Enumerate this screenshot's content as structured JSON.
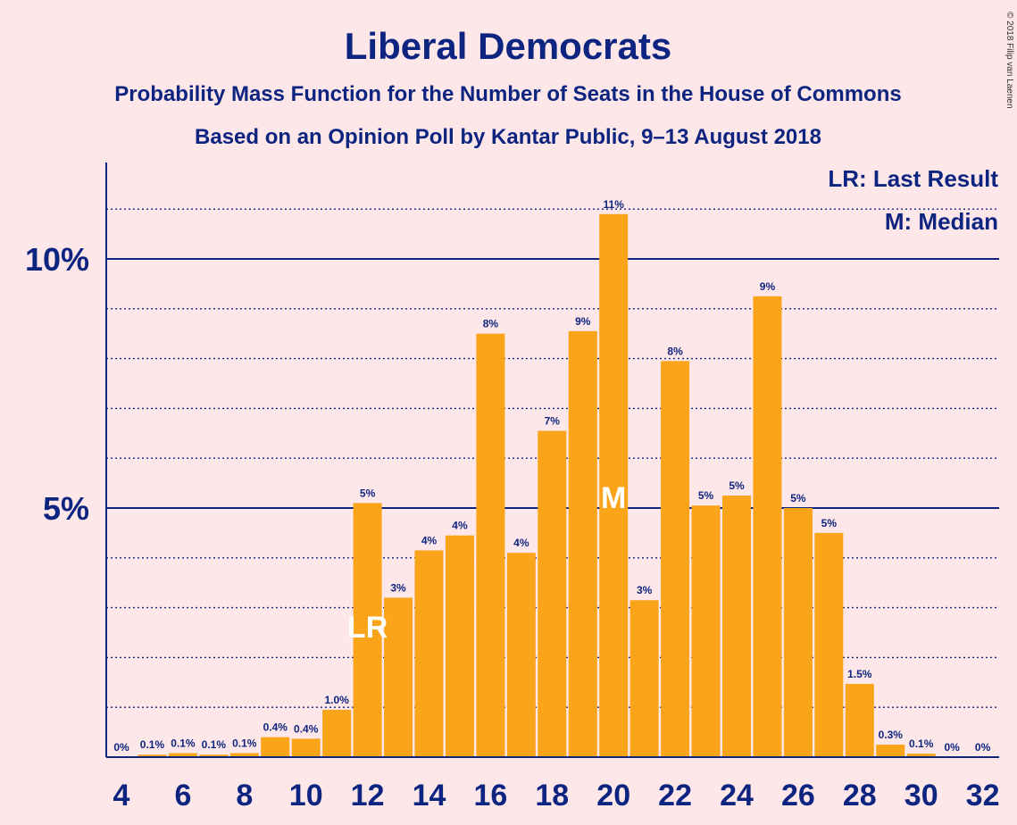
{
  "chart_data": {
    "type": "bar",
    "title": "Liberal Democrats",
    "subtitle": "Probability Mass Function for the Number of Seats in the House of Commons",
    "subtitle2": "Based on an Opinion Poll by Kantar Public, 9–13 August 2018",
    "copyright": "© 2018 Filip van Laenen",
    "legend": {
      "lr": "LR: Last Result",
      "m": "M: Median",
      "position": "top-right"
    },
    "xlabel": "",
    "ylabel": "",
    "ylim": [
      0,
      12
    ],
    "x_ticks": [
      "4",
      "6",
      "8",
      "10",
      "12",
      "14",
      "16",
      "18",
      "20",
      "22",
      "24",
      "26",
      "28",
      "30",
      "32"
    ],
    "y_ticks": [
      {
        "value": 5,
        "label": "5%"
      },
      {
        "value": 10,
        "label": "10%"
      }
    ],
    "grid": "dotted every 1%, solid at 5% and 10%",
    "colors": {
      "bar": "#faa41a",
      "axis": "#0d2480",
      "background": "#fde7e9"
    },
    "last_result_seat": 12,
    "median_seat": 20,
    "markers": {
      "lr": "LR",
      "m": "M"
    },
    "x": [
      4,
      5,
      6,
      7,
      8,
      9,
      10,
      11,
      12,
      13,
      14,
      15,
      16,
      17,
      18,
      19,
      20,
      21,
      22,
      23,
      24,
      25,
      26,
      27,
      28,
      29,
      30,
      31,
      32
    ],
    "values": [
      0,
      0.05,
      0.08,
      0.05,
      0.08,
      0.4,
      0.37,
      0.95,
      5.1,
      3.2,
      4.15,
      4.45,
      8.5,
      4.1,
      6.55,
      8.55,
      10.9,
      3.15,
      7.95,
      5.05,
      5.25,
      9.25,
      5.0,
      4.5,
      1.47,
      0.25,
      0.07,
      0,
      0
    ],
    "labels": [
      "0%",
      "0.1%",
      "0.1%",
      "0.1%",
      "0.1%",
      "0.4%",
      "0.4%",
      "1.0%",
      "5%",
      "3%",
      "4%",
      "4%",
      "8%",
      "4%",
      "7%",
      "9%",
      "11%",
      "3%",
      "8%",
      "5%",
      "5%",
      "9%",
      "5%",
      "5%",
      "1.5%",
      "0.3%",
      "0.1%",
      "0%",
      "0%"
    ]
  }
}
